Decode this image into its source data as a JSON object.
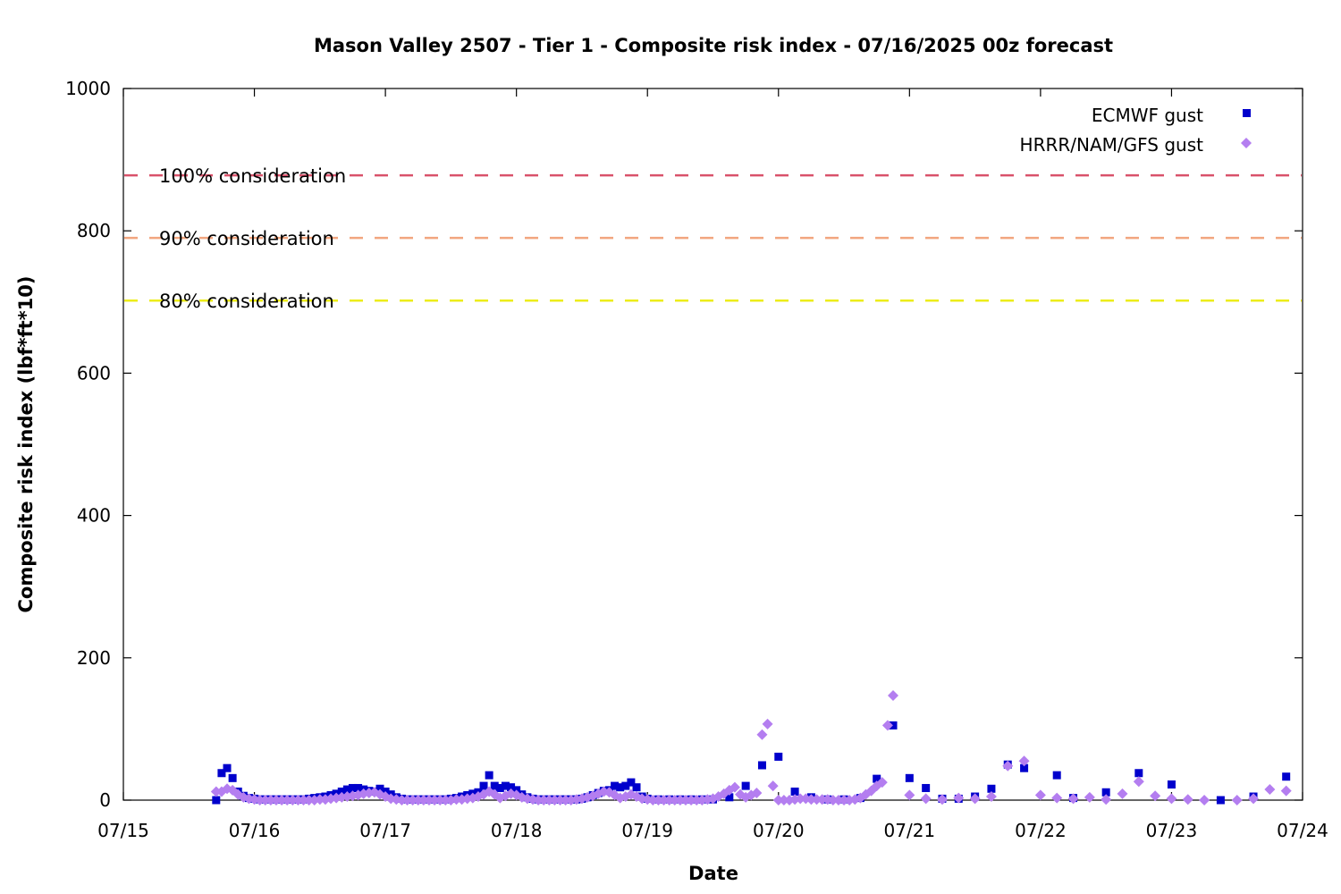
{
  "colors": {
    "ecmwf": "#0000cc",
    "hrrr": "#b47ef0",
    "line_100": "#d9526b",
    "line_90": "#f2a57f",
    "line_80": "#eded1a"
  },
  "chart_data": {
    "type": "scatter",
    "title": "Mason Valley 2507 - Tier 1 - Composite risk index - 07/16/2025 00z forecast",
    "xlabel": "Date",
    "ylabel": "Composite risk index (lbf*ft*10)",
    "xlim": [
      "07/15 00:00",
      "07/24 00:00"
    ],
    "ylim": [
      0,
      1000
    ],
    "x_ticks": [
      "07/15",
      "07/16",
      "07/17",
      "07/18",
      "07/19",
      "07/20",
      "07/21",
      "07/22",
      "07/23",
      "07/24"
    ],
    "y_ticks": [
      "0",
      "200",
      "400",
      "600",
      "800",
      "1000"
    ],
    "grid": false,
    "legend_position": "top-right",
    "reference_lines": [
      {
        "label": "100% consideration",
        "value": 878,
        "color": "#d9526b"
      },
      {
        "label": "90% consideration",
        "value": 790,
        "color": "#f2a57f"
      },
      {
        "label": "80% consideration",
        "value": 702,
        "color": "#eded1a"
      }
    ],
    "x_unit": "hours after 07/15 00:00",
    "series": [
      {
        "name": "ECMWF gust",
        "marker": "square",
        "color": "#0000cc",
        "points": [
          [
            17,
            0
          ],
          [
            18,
            38
          ],
          [
            19,
            45
          ],
          [
            20,
            31
          ],
          [
            21,
            12
          ],
          [
            22,
            6
          ],
          [
            23,
            3
          ],
          [
            24,
            2
          ],
          [
            25,
            1
          ],
          [
            26,
            1
          ],
          [
            27,
            1
          ],
          [
            28,
            1
          ],
          [
            29,
            1
          ],
          [
            30,
            1
          ],
          [
            31,
            1
          ],
          [
            32,
            1
          ],
          [
            33,
            1
          ],
          [
            34,
            2
          ],
          [
            35,
            3
          ],
          [
            36,
            4
          ],
          [
            37,
            5
          ],
          [
            38,
            7
          ],
          [
            39,
            9
          ],
          [
            40,
            12
          ],
          [
            41,
            15
          ],
          [
            42,
            17
          ],
          [
            43,
            17
          ],
          [
            44,
            15
          ],
          [
            45,
            13
          ],
          [
            46,
            12
          ],
          [
            47,
            16
          ],
          [
            48,
            12
          ],
          [
            49,
            8
          ],
          [
            50,
            4
          ],
          [
            51,
            2
          ],
          [
            52,
            1
          ],
          [
            53,
            1
          ],
          [
            54,
            1
          ],
          [
            55,
            1
          ],
          [
            56,
            1
          ],
          [
            57,
            1
          ],
          [
            58,
            1
          ],
          [
            59,
            1
          ],
          [
            60,
            2
          ],
          [
            61,
            3
          ],
          [
            62,
            5
          ],
          [
            63,
            7
          ],
          [
            64,
            9
          ],
          [
            65,
            11
          ],
          [
            66,
            20
          ],
          [
            67,
            35
          ],
          [
            68,
            20
          ],
          [
            69,
            17
          ],
          [
            70,
            20
          ],
          [
            71,
            18
          ],
          [
            72,
            14
          ],
          [
            73,
            8
          ],
          [
            74,
            4
          ],
          [
            75,
            2
          ],
          [
            76,
            1
          ],
          [
            77,
            1
          ],
          [
            78,
            1
          ],
          [
            79,
            1
          ],
          [
            80,
            1
          ],
          [
            81,
            1
          ],
          [
            82,
            1
          ],
          [
            83,
            1
          ],
          [
            84,
            2
          ],
          [
            85,
            4
          ],
          [
            86,
            7
          ],
          [
            87,
            10
          ],
          [
            88,
            13
          ],
          [
            89,
            14
          ],
          [
            90,
            20
          ],
          [
            91,
            18
          ],
          [
            92,
            20
          ],
          [
            93,
            25
          ],
          [
            94,
            18
          ],
          [
            95,
            5
          ],
          [
            96,
            2
          ],
          [
            98,
            1
          ],
          [
            100,
            1
          ],
          [
            102,
            1
          ],
          [
            104,
            1
          ],
          [
            106,
            1
          ],
          [
            108,
            1
          ],
          [
            111,
            4
          ],
          [
            114,
            20
          ],
          [
            117,
            49
          ],
          [
            120,
            61
          ],
          [
            123,
            12
          ],
          [
            126,
            4
          ],
          [
            129,
            1
          ],
          [
            132,
            1
          ],
          [
            135,
            3
          ],
          [
            138,
            30
          ],
          [
            141,
            105
          ],
          [
            144,
            31
          ],
          [
            147,
            17
          ],
          [
            150,
            2
          ],
          [
            153,
            2
          ],
          [
            156,
            5
          ],
          [
            159,
            16
          ],
          [
            162,
            50
          ],
          [
            165,
            45
          ],
          [
            171,
            35
          ],
          [
            174,
            3
          ],
          [
            180,
            11
          ],
          [
            186,
            38
          ],
          [
            192,
            22
          ],
          [
            201,
            0
          ],
          [
            207,
            5
          ],
          [
            213,
            33
          ]
        ]
      },
      {
        "name": "HRRR/NAM/GFS gust",
        "marker": "diamond",
        "color": "#b47ef0",
        "points": [
          [
            17,
            12
          ],
          [
            18,
            12
          ],
          [
            19,
            16
          ],
          [
            20,
            14
          ],
          [
            21,
            8
          ],
          [
            22,
            4
          ],
          [
            23,
            2
          ],
          [
            24,
            1
          ],
          [
            25,
            0
          ],
          [
            26,
            0
          ],
          [
            27,
            0
          ],
          [
            28,
            0
          ],
          [
            29,
            0
          ],
          [
            30,
            0
          ],
          [
            31,
            0
          ],
          [
            32,
            0
          ],
          [
            33,
            0
          ],
          [
            34,
            0
          ],
          [
            35,
            0
          ],
          [
            36,
            1
          ],
          [
            37,
            1
          ],
          [
            38,
            2
          ],
          [
            39,
            3
          ],
          [
            40,
            4
          ],
          [
            41,
            5
          ],
          [
            42,
            6
          ],
          [
            43,
            7
          ],
          [
            44,
            9
          ],
          [
            45,
            10
          ],
          [
            46,
            11
          ],
          [
            47,
            8
          ],
          [
            48,
            5
          ],
          [
            49,
            2
          ],
          [
            50,
            1
          ],
          [
            51,
            0
          ],
          [
            52,
            0
          ],
          [
            53,
            0
          ],
          [
            54,
            0
          ],
          [
            55,
            0
          ],
          [
            56,
            0
          ],
          [
            57,
            0
          ],
          [
            58,
            0
          ],
          [
            59,
            0
          ],
          [
            60,
            0
          ],
          [
            61,
            1
          ],
          [
            62,
            1
          ],
          [
            63,
            2
          ],
          [
            64,
            3
          ],
          [
            65,
            5
          ],
          [
            66,
            8
          ],
          [
            67,
            12
          ],
          [
            68,
            8
          ],
          [
            69,
            3
          ],
          [
            70,
            6
          ],
          [
            71,
            9
          ],
          [
            72,
            7
          ],
          [
            73,
            4
          ],
          [
            74,
            2
          ],
          [
            75,
            1
          ],
          [
            76,
            0
          ],
          [
            77,
            0
          ],
          [
            78,
            0
          ],
          [
            79,
            0
          ],
          [
            80,
            0
          ],
          [
            81,
            0
          ],
          [
            82,
            0
          ],
          [
            83,
            1
          ],
          [
            84,
            2
          ],
          [
            85,
            4
          ],
          [
            86,
            6
          ],
          [
            87,
            9
          ],
          [
            88,
            12
          ],
          [
            89,
            11
          ],
          [
            90,
            7
          ],
          [
            91,
            3
          ],
          [
            92,
            5
          ],
          [
            93,
            8
          ],
          [
            94,
            5
          ],
          [
            95,
            2
          ],
          [
            96,
            1
          ],
          [
            97,
            0
          ],
          [
            98,
            0
          ],
          [
            99,
            0
          ],
          [
            100,
            0
          ],
          [
            101,
            0
          ],
          [
            102,
            0
          ],
          [
            103,
            0
          ],
          [
            104,
            0
          ],
          [
            105,
            0
          ],
          [
            106,
            0
          ],
          [
            107,
            1
          ],
          [
            108,
            2
          ],
          [
            109,
            5
          ],
          [
            110,
            9
          ],
          [
            111,
            14
          ],
          [
            112,
            18
          ],
          [
            113,
            8
          ],
          [
            114,
            4
          ],
          [
            115,
            7
          ],
          [
            116,
            10
          ],
          [
            117,
            92
          ],
          [
            118,
            107
          ],
          [
            119,
            20
          ],
          [
            120,
            0
          ],
          [
            121,
            0
          ],
          [
            122,
            0
          ],
          [
            123,
            1
          ],
          [
            124,
            2
          ],
          [
            125,
            2
          ],
          [
            126,
            1
          ],
          [
            127,
            1
          ],
          [
            128,
            1
          ],
          [
            129,
            1
          ],
          [
            130,
            0
          ],
          [
            131,
            0
          ],
          [
            132,
            0
          ],
          [
            133,
            0
          ],
          [
            134,
            1
          ],
          [
            135,
            3
          ],
          [
            136,
            8
          ],
          [
            137,
            13
          ],
          [
            138,
            20
          ],
          [
            139,
            25
          ],
          [
            140,
            105
          ],
          [
            141,
            147
          ],
          [
            144,
            7
          ],
          [
            147,
            2
          ],
          [
            150,
            1
          ],
          [
            153,
            3
          ],
          [
            156,
            2
          ],
          [
            159,
            5
          ],
          [
            162,
            48
          ],
          [
            165,
            55
          ],
          [
            168,
            7
          ],
          [
            171,
            3
          ],
          [
            174,
            2
          ],
          [
            177,
            4
          ],
          [
            180,
            1
          ],
          [
            183,
            9
          ],
          [
            186,
            26
          ],
          [
            189,
            6
          ],
          [
            192,
            2
          ],
          [
            195,
            1
          ],
          [
            198,
            0
          ],
          [
            204,
            0
          ],
          [
            207,
            2
          ],
          [
            210,
            15
          ],
          [
            213,
            13
          ]
        ]
      }
    ]
  }
}
